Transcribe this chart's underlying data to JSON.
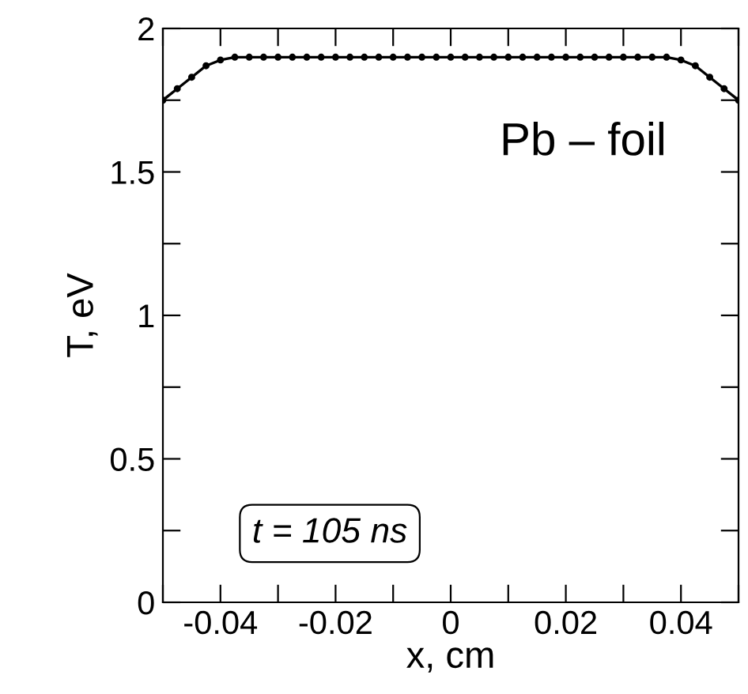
{
  "chart_data": {
    "type": "line",
    "xlabel": "x, cm",
    "ylabel": "T, eV",
    "marker": "circle",
    "line_style": "solid",
    "grid": false,
    "legend": false,
    "x": [
      -0.05,
      -0.0475,
      -0.045,
      -0.0425,
      -0.04,
      -0.0375,
      -0.035,
      -0.0325,
      -0.03,
      -0.0275,
      -0.025,
      -0.0225,
      -0.02,
      -0.0175,
      -0.015,
      -0.0125,
      -0.01,
      -0.0075,
      -0.005,
      -0.0025,
      0,
      0.0025,
      0.005,
      0.0075,
      0.01,
      0.0125,
      0.015,
      0.0175,
      0.02,
      0.0225,
      0.025,
      0.0275,
      0.03,
      0.0325,
      0.035,
      0.0375,
      0.04,
      0.0425,
      0.045,
      0.0475,
      0.05
    ],
    "series": [
      {
        "color": "#000000",
        "values": [
          1.75,
          1.79,
          1.83,
          1.87,
          1.89,
          1.9,
          1.9,
          1.9,
          1.9,
          1.9,
          1.9,
          1.9,
          1.9,
          1.9,
          1.9,
          1.9,
          1.9,
          1.9,
          1.9,
          1.9,
          1.9,
          1.9,
          1.9,
          1.9,
          1.9,
          1.9,
          1.9,
          1.9,
          1.9,
          1.9,
          1.9,
          1.9,
          1.9,
          1.9,
          1.9,
          1.9,
          1.89,
          1.87,
          1.83,
          1.79,
          1.75
        ]
      }
    ],
    "xlim": [
      -0.05,
      0.05
    ],
    "ylim": [
      0,
      2
    ],
    "xticks": [
      {
        "value": -0.05,
        "label": null
      },
      -0.04,
      {
        "value": -0.03,
        "label": null
      },
      -0.02,
      {
        "value": -0.01,
        "label": null
      },
      0,
      {
        "value": 0.01,
        "label": null
      },
      0.02,
      {
        "value": 0.03,
        "label": null
      },
      0.04,
      {
        "value": 0.05,
        "label": null
      }
    ],
    "yticks": [
      0,
      {
        "value": 0.25,
        "label": null
      },
      0.5,
      {
        "value": 0.75,
        "label": null
      },
      1,
      {
        "value": 1.25,
        "label": null
      },
      1.5,
      {
        "value": 1.75,
        "label": null
      },
      2
    ],
    "annotations": [
      "Pb – foil",
      "t = 105 ns"
    ]
  }
}
